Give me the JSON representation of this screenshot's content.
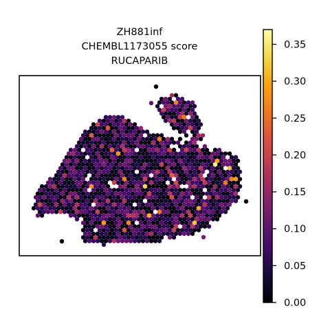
{
  "chart_data": {
    "type": "scatter",
    "title_lines": [
      "ZH881inf",
      "CHEMBL1173055 score",
      "RUCAPARIB"
    ],
    "xlabel": "",
    "ylabel": "",
    "axes_ticks_visible": false,
    "grid": false,
    "legend": "none",
    "colorbar": {
      "colormap": "inferno",
      "range": [
        0.0,
        0.37
      ],
      "tick_values": [
        0.0,
        0.05,
        0.1,
        0.15,
        0.2,
        0.25,
        0.3,
        0.35
      ],
      "tick_labels": [
        "0.00",
        "0.05",
        "0.10",
        "0.15",
        "0.20",
        "0.25",
        "0.30",
        "0.35"
      ],
      "placement": "right"
    },
    "point_color_distribution": {
      "description_values": "spatial spots, mostly 0.00–0.12, few high (up to ~0.37)",
      "max_value": 0.37
    }
  }
}
